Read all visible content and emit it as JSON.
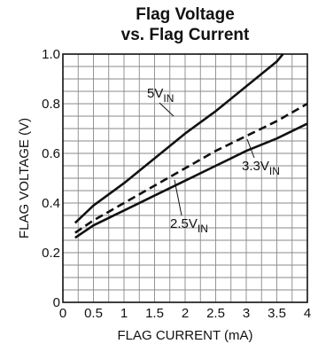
{
  "chart_data": {
    "type": "line",
    "title_lines": [
      "Flag Voltage",
      "vs. Flag Current"
    ],
    "xlabel": "FLAG CURRENT (mA)",
    "ylabel": "FLAG VOLTAGE (V)",
    "xlim": [
      0,
      4
    ],
    "ylim": [
      0,
      1.0
    ],
    "xticks": [
      0,
      0.5,
      1,
      1.5,
      2,
      2.5,
      3,
      3.5,
      4
    ],
    "xtick_labels": [
      "0",
      "0.5",
      "1",
      "1.5",
      "2",
      "2.5",
      "3",
      "3.5",
      "4"
    ],
    "yticks": [
      0,
      0.2,
      0.4,
      0.6,
      0.8,
      1.0
    ],
    "ytick_labels": [
      "0",
      "0.2",
      "0.4",
      "0.6",
      "0.8",
      "1.0"
    ],
    "grid": true,
    "series": [
      {
        "name": "5V",
        "name_sub": "IN",
        "style": "solid",
        "x": [
          0.2,
          0.5,
          1.0,
          1.5,
          2.0,
          2.5,
          3.0,
          3.5,
          3.6
        ],
        "y": [
          0.32,
          0.39,
          0.48,
          0.58,
          0.68,
          0.77,
          0.87,
          0.97,
          1.0
        ]
      },
      {
        "name": "3.3V",
        "name_sub": "IN",
        "style": "dashed",
        "x": [
          0.2,
          0.5,
          1.0,
          1.5,
          2.0,
          2.5,
          3.0,
          3.5,
          4.0
        ],
        "y": [
          0.28,
          0.33,
          0.4,
          0.47,
          0.54,
          0.61,
          0.67,
          0.73,
          0.8
        ]
      },
      {
        "name": "2.5V",
        "name_sub": "IN",
        "style": "solid",
        "x": [
          0.2,
          0.5,
          1.0,
          1.5,
          2.0,
          2.5,
          3.0,
          3.5,
          4.0
        ],
        "y": [
          0.26,
          0.31,
          0.37,
          0.43,
          0.49,
          0.55,
          0.61,
          0.66,
          0.72
        ]
      }
    ],
    "colors": {
      "line": "#111111",
      "grid": "#8a8a8a",
      "background": "#ffffff"
    }
  }
}
